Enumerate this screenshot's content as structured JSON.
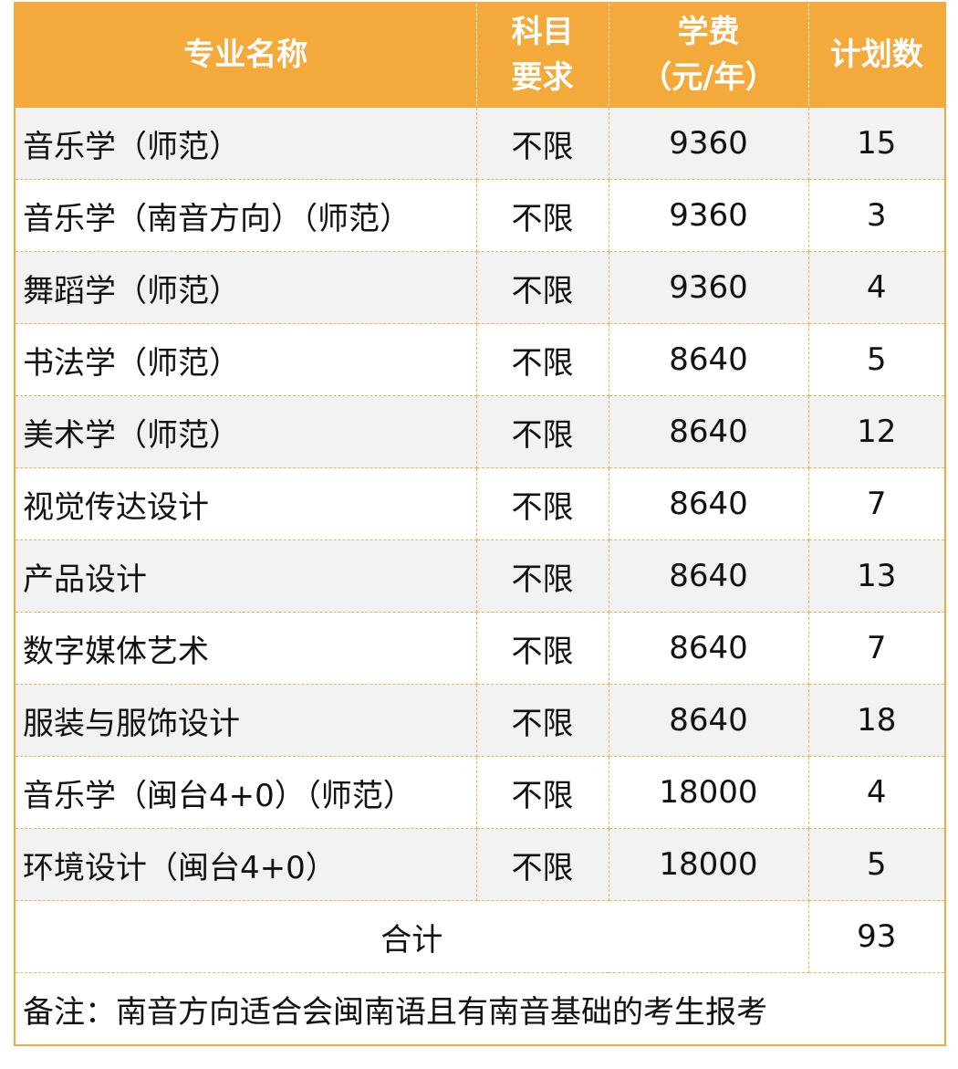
{
  "header": {
    "major_name": "专业名称",
    "subject_req": [
      "科目",
      "要求"
    ],
    "tuition": [
      "学费",
      "（元/年）"
    ],
    "plan_count": "计划数"
  },
  "rows": [
    {
      "major": "音乐学（师范）",
      "subject": "不限",
      "tuition": "9360",
      "plan": "15"
    },
    {
      "major": "音乐学（南音方向）（师范）",
      "subject": "不限",
      "tuition": "9360",
      "plan": "3"
    },
    {
      "major": "舞蹈学（师范）",
      "subject": "不限",
      "tuition": "9360",
      "plan": "4"
    },
    {
      "major": "书法学（师范）",
      "subject": "不限",
      "tuition": "8640",
      "plan": "5"
    },
    {
      "major": "美术学（师范）",
      "subject": "不限",
      "tuition": "8640",
      "plan": "12"
    },
    {
      "major": "视觉传达设计",
      "subject": "不限",
      "tuition": "8640",
      "plan": "7"
    },
    {
      "major": "产品设计",
      "subject": "不限",
      "tuition": "8640",
      "plan": "13"
    },
    {
      "major": "数字媒体艺术",
      "subject": "不限",
      "tuition": "8640",
      "plan": "7"
    },
    {
      "major": "服装与服饰设计",
      "subject": "不限",
      "tuition": "8640",
      "plan": "18"
    },
    {
      "major": "音乐学（闽台4+0）（师范）",
      "subject": "不限",
      "tuition": "18000",
      "plan": "4"
    },
    {
      "major": "环境设计（闽台4+0）",
      "subject": "不限",
      "tuition": "18000",
      "plan": "5"
    }
  ],
  "total": {
    "label": "合计",
    "value": "93"
  },
  "note": "备注：南音方向适合会闽南语且有南音基础的考生报考",
  "colors": {
    "header_bg": "#f4a93b",
    "header_text": "#ffffff",
    "stripe": "#f2f2f2",
    "border": "#f4a93b"
  }
}
